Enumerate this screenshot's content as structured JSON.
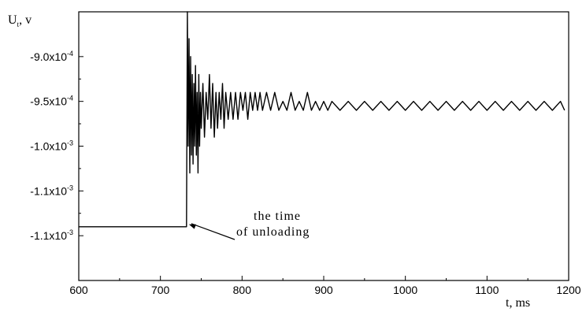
{
  "chart_data": {
    "type": "line",
    "title": "",
    "xlabel": "t, ms",
    "ylabel": {
      "main": "U",
      "sub": "t",
      "unit": ", v"
    },
    "xlim": [
      600,
      1200
    ],
    "ylim": [
      -0.00115,
      -0.00085
    ],
    "x_ticks": [
      600,
      700,
      800,
      900,
      1000,
      1100,
      1200
    ],
    "x_tick_labels": [
      "600",
      "700",
      "800",
      "900",
      "1000",
      "1100",
      "1200"
    ],
    "y_ticks": [
      {
        "value": -0.0009,
        "mantissa": "-9.0x10",
        "exp": "-4"
      },
      {
        "value": -0.00095,
        "mantissa": "-9.5x10",
        "exp": "-4"
      },
      {
        "value": -0.001,
        "mantissa": "-1.0x10",
        "exp": "-3"
      },
      {
        "value": -0.00105,
        "mantissa": "-1.1x10",
        "exp": "-3"
      },
      {
        "value": -0.0011,
        "mantissa": "-1.1x10",
        "exp": "-3"
      }
    ],
    "grid": false,
    "annotation": {
      "lines": [
        "the time",
        "of unloading"
      ],
      "target": {
        "x": 733,
        "y": -0.00109
      }
    },
    "series": [
      {
        "color": "#000000",
        "x": [
          600,
          650,
          700,
          732,
          733,
          734,
          735,
          736,
          737,
          738,
          739,
          740,
          741,
          742,
          743,
          744,
          745,
          746,
          747,
          748,
          749,
          750,
          752,
          754,
          756,
          758,
          760,
          762,
          764,
          766,
          768,
          770,
          772,
          774,
          776,
          778,
          780,
          783,
          786,
          789,
          792,
          795,
          798,
          801,
          804,
          807,
          810,
          813,
          816,
          819,
          822,
          825,
          830,
          835,
          840,
          845,
          850,
          855,
          860,
          865,
          870,
          875,
          880,
          885,
          890,
          895,
          900,
          905,
          910,
          920,
          930,
          940,
          950,
          960,
          970,
          980,
          990,
          1000,
          1010,
          1020,
          1030,
          1040,
          1050,
          1060,
          1070,
          1080,
          1090,
          1100,
          1110,
          1120,
          1130,
          1140,
          1150,
          1160,
          1170,
          1180,
          1190,
          1195
        ],
        "y": [
          -0.00109,
          -0.00109,
          -0.00109,
          -0.00109,
          -0.00085,
          -0.001,
          -0.00088,
          -0.00103,
          -0.0009,
          -0.00101,
          -0.00092,
          -0.00102,
          -0.00093,
          -0.001,
          -0.00091,
          -0.00101,
          -0.00094,
          -0.00103,
          -0.00092,
          -0.001,
          -0.00094,
          -0.00098,
          -0.00093,
          -0.00099,
          -0.00094,
          -0.00097,
          -0.00092,
          -0.00098,
          -0.00093,
          -0.00099,
          -0.00094,
          -0.00098,
          -0.00094,
          -0.00097,
          -0.00093,
          -0.00098,
          -0.00094,
          -0.00097,
          -0.00094,
          -0.00097,
          -0.00094,
          -0.00097,
          -0.00094,
          -0.00096,
          -0.00094,
          -0.00097,
          -0.00094,
          -0.00096,
          -0.00094,
          -0.00096,
          -0.00094,
          -0.00096,
          -0.00094,
          -0.00096,
          -0.00094,
          -0.00096,
          -0.00095,
          -0.00096,
          -0.00094,
          -0.00096,
          -0.00095,
          -0.00096,
          -0.00094,
          -0.00096,
          -0.00095,
          -0.00096,
          -0.00095,
          -0.00096,
          -0.00095,
          -0.00096,
          -0.00095,
          -0.00096,
          -0.00095,
          -0.00096,
          -0.00095,
          -0.00096,
          -0.00095,
          -0.00096,
          -0.00095,
          -0.00096,
          -0.00095,
          -0.00096,
          -0.00095,
          -0.00096,
          -0.00095,
          -0.00096,
          -0.00095,
          -0.00096,
          -0.00095,
          -0.00096,
          -0.00095,
          -0.00096,
          -0.00095,
          -0.00096,
          -0.00095,
          -0.00096,
          -0.00095,
          -0.00096
        ]
      }
    ]
  }
}
